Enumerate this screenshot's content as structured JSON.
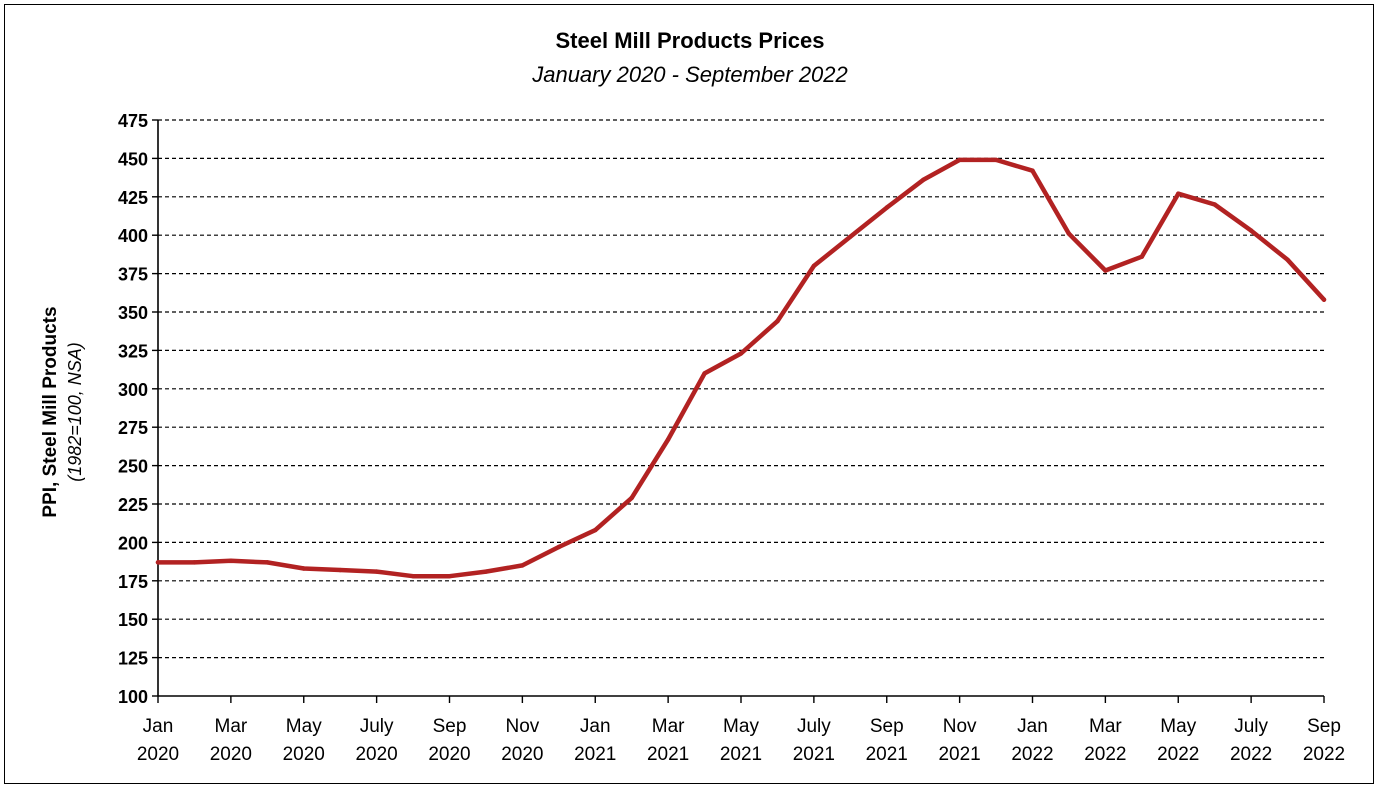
{
  "chart_data": {
    "type": "line",
    "title": "Steel Mill Products Prices",
    "subtitle": "January 2020 - September 2022",
    "ylabel": "PPI, Steel Mill Products",
    "ylabel_note": "(1982=100, NSA)",
    "xlabel": "",
    "ylim": [
      100,
      475
    ],
    "yticks": [
      100,
      125,
      150,
      175,
      200,
      225,
      250,
      275,
      300,
      325,
      350,
      375,
      400,
      425,
      450,
      475
    ],
    "grid": true,
    "legend": "none",
    "x_tick_labels": [
      {
        "month": "Jan",
        "year": "2020"
      },
      {
        "month": "Mar",
        "year": "2020"
      },
      {
        "month": "May",
        "year": "2020"
      },
      {
        "month": "July",
        "year": "2020"
      },
      {
        "month": "Sep",
        "year": "2020"
      },
      {
        "month": "Nov",
        "year": "2020"
      },
      {
        "month": "Jan",
        "year": "2021"
      },
      {
        "month": "Mar",
        "year": "2021"
      },
      {
        "month": "May",
        "year": "2021"
      },
      {
        "month": "July",
        "year": "2021"
      },
      {
        "month": "Sep",
        "year": "2021"
      },
      {
        "month": "Nov",
        "year": "2021"
      },
      {
        "month": "Jan",
        "year": "2022"
      },
      {
        "month": "Mar",
        "year": "2022"
      },
      {
        "month": "May",
        "year": "2022"
      },
      {
        "month": "July",
        "year": "2022"
      },
      {
        "month": "Sep",
        "year": "2022"
      }
    ],
    "x": [
      "2020-01",
      "2020-02",
      "2020-03",
      "2020-04",
      "2020-05",
      "2020-06",
      "2020-07",
      "2020-08",
      "2020-09",
      "2020-10",
      "2020-11",
      "2020-12",
      "2021-01",
      "2021-02",
      "2021-03",
      "2021-04",
      "2021-05",
      "2021-06",
      "2021-07",
      "2021-08",
      "2021-09",
      "2021-10",
      "2021-11",
      "2021-12",
      "2022-01",
      "2022-02",
      "2022-03",
      "2022-04",
      "2022-05",
      "2022-06",
      "2022-07",
      "2022-08",
      "2022-09"
    ],
    "series": [
      {
        "color": "#b22222",
        "values": [
          187,
          187,
          188,
          187,
          183,
          182,
          181,
          178,
          178,
          181,
          185,
          197,
          208,
          229,
          267,
          310,
          323,
          344,
          380,
          399,
          418,
          436,
          449,
          449,
          442,
          401,
          377,
          386,
          427,
          420,
          403,
          384,
          358
        ]
      }
    ]
  }
}
